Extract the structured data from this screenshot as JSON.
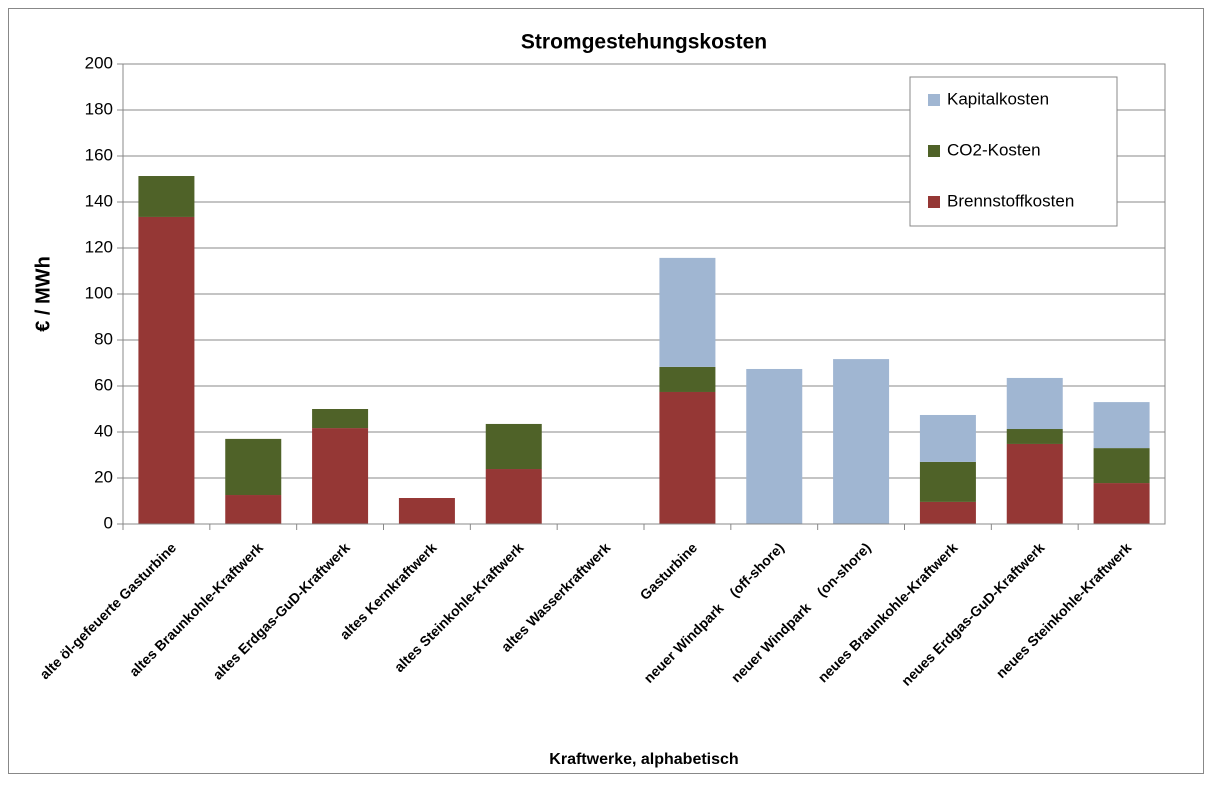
{
  "chart_data": {
    "type": "stacked_bar",
    "title": "Stromgestehungskosten",
    "x_label": "Kraftwerke, alphabetisch",
    "y_label": "€ / MWh",
    "categories": [
      "alte öl-gefeuerte Gasturbine",
      "altes Braunkohle-Kraftwerk",
      "altes Erdgas-GuD-Kraftwerk",
      "altes Kernkraftwerk",
      "altes Steinkohle-Kraftwerk",
      "altes Wasserkraftwerk",
      "Gasturbine",
      "neuer Windpark    (off-shore)",
      "neuer Windpark    (on-shore)",
      "neues Braunkohle-Kraftwerk",
      "neues Erdgas-GuD-Kraftwerk",
      "neues Steinkohle-Kraftwerk"
    ],
    "series": [
      {
        "name": "Brennstoffkosten",
        "color": "#953735",
        "values": [
          133.5,
          12.6,
          41.7,
          11.3,
          23.9,
          0,
          57.4,
          0,
          0,
          9.6,
          34.8,
          17.8
        ]
      },
      {
        "name": "CO2-Kosten",
        "color": "#4f6228",
        "values": [
          17.8,
          24.4,
          8.3,
          0,
          19.6,
          0,
          10.9,
          0,
          0,
          17.4,
          6.5,
          15.2
        ]
      },
      {
        "name": "Kapitalkosten",
        "color": "#a0b6d2",
        "values": [
          0,
          0,
          0,
          0,
          0,
          0,
          47.4,
          67.4,
          71.7,
          20.4,
          22.2,
          20
        ]
      }
    ],
    "ylim": [
      0,
      200
    ],
    "yticks": [
      0,
      20,
      40,
      60,
      80,
      100,
      120,
      140,
      160,
      180,
      200
    ],
    "grid": true,
    "legend": "upper right"
  }
}
